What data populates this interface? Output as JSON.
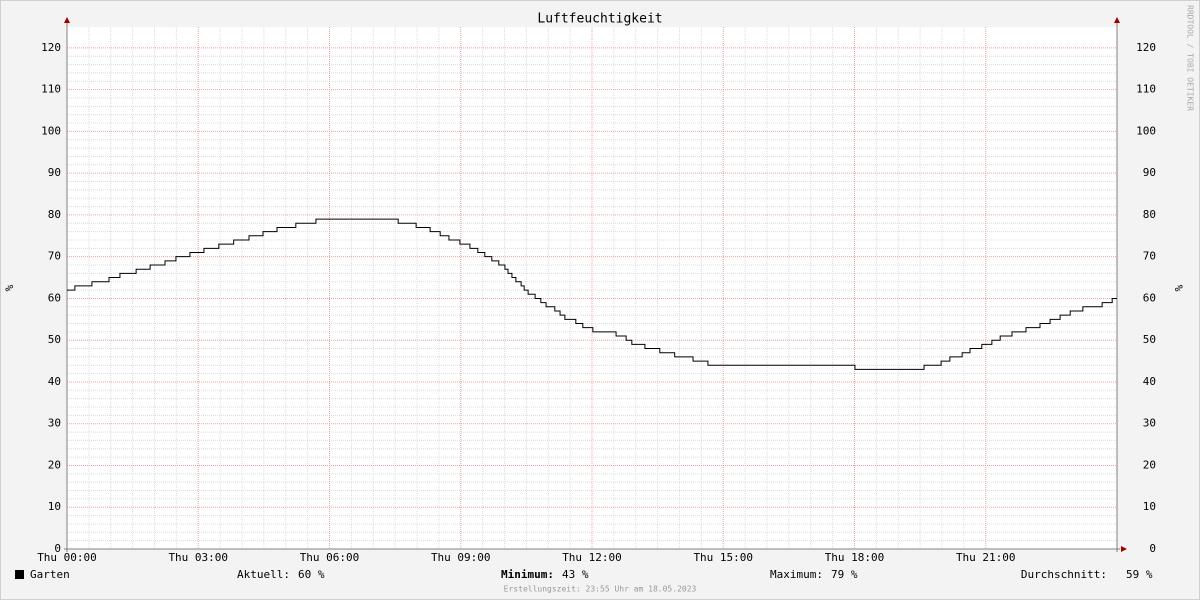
{
  "chart_data": {
    "type": "line",
    "title": "Luftfeuchtigkeit",
    "y_label": "%",
    "credit": "RRDTOOL / TOBI OETIKER",
    "xlim": [
      0,
      24
    ],
    "xticks": [
      {
        "value": 0,
        "label": "Thu 00:00"
      },
      {
        "value": 3,
        "label": "Thu 03:00"
      },
      {
        "value": 6,
        "label": "Thu 06:00"
      },
      {
        "value": 9,
        "label": "Thu 09:00"
      },
      {
        "value": 12,
        "label": "Thu 12:00"
      },
      {
        "value": 15,
        "label": "Thu 15:00"
      },
      {
        "value": 18,
        "label": "Thu 18:00"
      },
      {
        "value": 21,
        "label": "Thu 21:00"
      }
    ],
    "ylim": [
      0,
      125
    ],
    "yticks": [
      0,
      10,
      20,
      30,
      40,
      50,
      60,
      70,
      80,
      90,
      100,
      110,
      120
    ],
    "grid": true,
    "step": true,
    "series": [
      {
        "name": "Garten",
        "color": "#000000",
        "x": [
          0,
          0.18,
          0.57,
          0.96,
          1.21,
          1.58,
          1.9,
          2.24,
          2.49,
          2.81,
          3.13,
          3.47,
          3.81,
          4.16,
          4.48,
          4.8,
          5.23,
          5.69,
          7.57,
          7.98,
          8.3,
          8.53,
          8.73,
          8.98,
          9.21,
          9.39,
          9.55,
          9.71,
          9.87,
          10.01,
          10.08,
          10.17,
          10.26,
          10.38,
          10.45,
          10.54,
          10.7,
          10.83,
          10.95,
          11.15,
          11.27,
          11.38,
          11.63,
          11.79,
          12.02,
          12.55,
          12.78,
          12.91,
          13.21,
          13.55,
          13.89,
          14.31,
          14.65,
          18.01,
          19.59,
          19.98,
          20.18,
          20.46,
          20.64,
          20.91,
          21.14,
          21.33,
          21.6,
          21.92,
          22.24,
          22.47,
          22.7,
          22.93,
          23.22,
          23.66,
          23.89
        ],
        "values": [
          62,
          63,
          64,
          65,
          66,
          67,
          68,
          69,
          70,
          71,
          72,
          73,
          74,
          75,
          76,
          77,
          78,
          79,
          78,
          77,
          76,
          75,
          74,
          73,
          72,
          71,
          70,
          69,
          68,
          67,
          66,
          65,
          64,
          63,
          62,
          61,
          60,
          59,
          58,
          57,
          56,
          55,
          54,
          53,
          52,
          51,
          50,
          49,
          48,
          47,
          46,
          45,
          44,
          43,
          44,
          45,
          46,
          47,
          48,
          49,
          50,
          51,
          52,
          53,
          54,
          55,
          56,
          57,
          58,
          59,
          60
        ]
      }
    ],
    "legend_stats": [
      {
        "label": "Aktuell:",
        "value": 60,
        "value_label": "60 %"
      },
      {
        "label": "Minimum:",
        "value": 43,
        "value_label": "43 %"
      },
      {
        "label": "Maximum:",
        "value": 79,
        "value_label": "79 %"
      },
      {
        "label": "Durchschnitt:",
        "value": 59,
        "value_label": "59 %"
      }
    ],
    "footer": "Erstellungszeit: 23:55 Uhr am 18.05.2023"
  }
}
